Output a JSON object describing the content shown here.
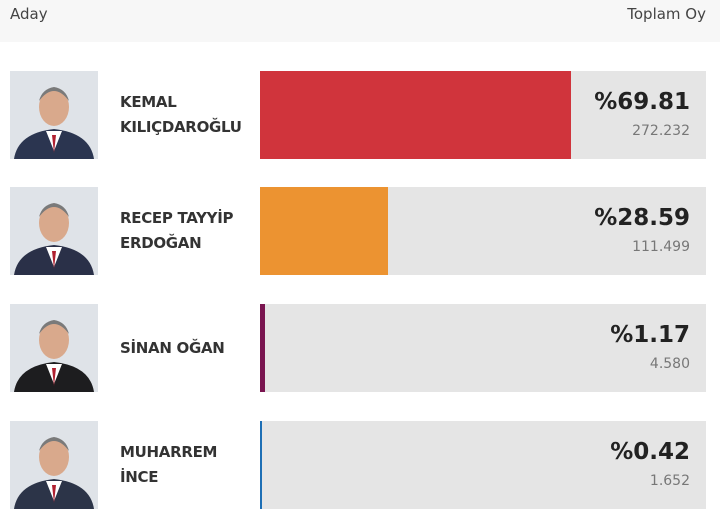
{
  "chart_data": {
    "type": "bar",
    "orientation": "horizontal",
    "header_left": "Aday",
    "header_right": "Toplam Oy",
    "categories": [
      "KEMAL KILIÇDAROĞLU",
      "RECEP TAYYİP ERDOĞAN",
      "SİNAN OĞAN",
      "MUHARREM İNCE"
    ],
    "values": [
      69.81,
      28.59,
      1.17,
      0.42
    ],
    "value_labels": [
      "%69.81",
      "%28.59",
      "%1.17",
      "%0.42"
    ],
    "votes": [
      272232,
      111499,
      4580,
      1652
    ],
    "vote_labels": [
      "272.232",
      "111.499",
      "4.580",
      "1.652"
    ],
    "colors": [
      "#d0343c",
      "#ec9331",
      "#7a1550",
      "#1e6fb5"
    ],
    "xlim": [
      0,
      100
    ]
  }
}
